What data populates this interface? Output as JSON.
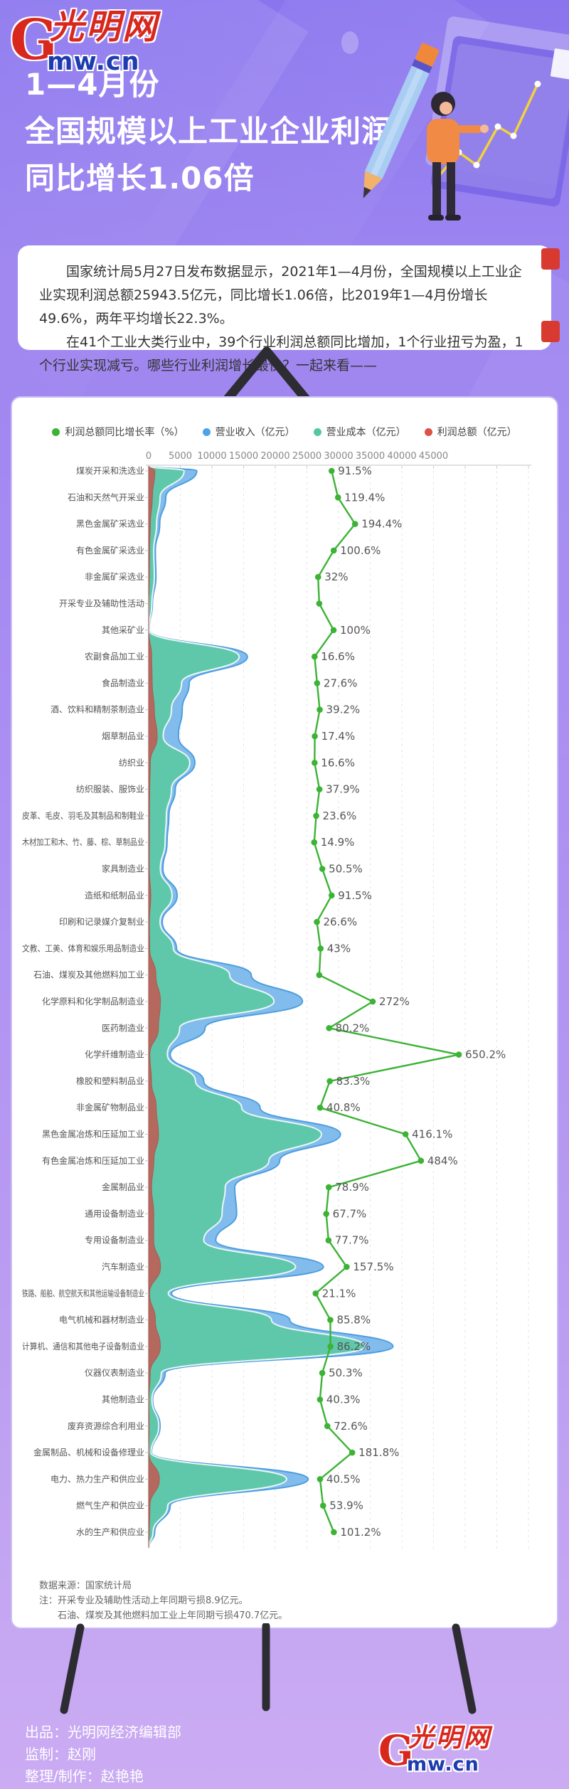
{
  "header": {
    "logo": {
      "initial": "G",
      "cn": "光明网",
      "en": "mw.cn"
    },
    "title_lines": [
      "1—4月份",
      "全国规模以上工业企业利润",
      "同比增长1.06倍"
    ]
  },
  "intro": {
    "p1": "国家统计局5月27日发布数据显示，2021年1—4月份，全国规模以上工业企业实现利润总额25943.5亿元，同比增长1.06倍，比2019年1—4月份增长49.6%，两年平均增长22.3%。",
    "p2": "在41个工业大类行业中，39个行业利润总额同比增加，1个行业扭亏为盈，1个行业实现减亏。哪些行业利润增长最快？一起来看——"
  },
  "chart_data": {
    "type": "area",
    "orientation": "horizontal-ridgeline",
    "legend": [
      {
        "label": "利润总额同比增长率（%）",
        "color": "#3cb335"
      },
      {
        "label": "营业收入（亿元）",
        "color": "#4da3e8"
      },
      {
        "label": "营业成本（亿元）",
        "color": "#52c7a3"
      },
      {
        "label": "利润总额（亿元）",
        "color": "#e05048"
      }
    ],
    "x_axis": {
      "ticks": [
        0,
        5000,
        10000,
        15000,
        20000,
        25000,
        30000,
        35000,
        40000,
        45000
      ],
      "grid": "dashed"
    },
    "categories": [
      "煤炭开采和洗选业",
      "石油和天然气开采业",
      "黑色金属矿采选业",
      "有色金属矿采选业",
      "非金属矿采选业",
      "开采专业及辅助性活动",
      "其他采矿业",
      "农副食品加工业",
      "食品制造业",
      "酒、饮料和精制茶制造业",
      "烟草制品业",
      "纺织业",
      "纺织服装、服饰业",
      "皮革、毛皮、羽毛及其制品和制鞋业",
      "木材加工和木、竹、藤、棕、草制品业",
      "家具制造业",
      "造纸和纸制品业",
      "印刷和记录媒介复制业",
      "文教、工美、体育和娱乐用品制造业",
      "石油、煤炭及其他燃料加工业",
      "化学原料和化学制品制造业",
      "医药制造业",
      "化学纤维制造业",
      "橡胶和塑料制品业",
      "非金属矿物制品业",
      "黑色金属冶炼和压延加工业",
      "有色金属冶炼和压延加工业",
      "金属制品业",
      "通用设备制造业",
      "专用设备制造业",
      "汽车制造业",
      "铁路、船舶、航空航天和其他运输设备制造业",
      "电气机械和器材制造业",
      "计算机、通信和其他电子设备制造业",
      "仪器仪表制造业",
      "其他制造业",
      "废弃资源综合利用业",
      "金属制品、机械和设备修理业",
      "电力、热力生产和供应业",
      "燃气生产和供应业",
      "水的生产和供应业"
    ],
    "series": [
      {
        "name": "营业收入（亿元）",
        "color": "#82bcec",
        "values": [
          7600,
          2700,
          1750,
          1050,
          1150,
          600,
          60,
          15600,
          6400,
          5300,
          4700,
          7300,
          4200,
          3200,
          2900,
          2250,
          4500,
          2150,
          4400,
          16200,
          24300,
          8900,
          3400,
          8700,
          17600,
          30300,
          20700,
          13600,
          13900,
          10600,
          27600,
          3600,
          22300,
          38600,
          2600,
          620,
          1800,
          450,
          25200,
          3400,
          950
        ]
      },
      {
        "name": "营业成本（亿元）",
        "color": "#5fc8aa",
        "values": [
          5600,
          1800,
          1250,
          800,
          900,
          500,
          45,
          14300,
          5200,
          3600,
          2300,
          6500,
          3600,
          2800,
          2600,
          1850,
          3700,
          1800,
          3900,
          12800,
          19800,
          4900,
          2950,
          7400,
          14700,
          27300,
          19000,
          12100,
          11600,
          8700,
          23200,
          3100,
          19400,
          34200,
          2000,
          520,
          1600,
          380,
          21800,
          3000,
          700
        ]
      },
      {
        "name": "利润总额（亿元）",
        "color": "#b5685e",
        "values": [
          1000,
          590,
          270,
          140,
          110,
          25,
          3,
          480,
          560,
          900,
          1350,
          270,
          170,
          130,
          110,
          95,
          340,
          115,
          170,
          1140,
          1870,
          1550,
          190,
          450,
          1200,
          1560,
          830,
          460,
          810,
          800,
          1880,
          150,
          1060,
          1850,
          250,
          40,
          80,
          25,
          1700,
          210,
          95
        ]
      }
    ],
    "growth_rate": {
      "name": "利润总额同比增长率（%）",
      "color": "#3cb335",
      "values": [
        91.5,
        119.4,
        194.4,
        100.6,
        32,
        null,
        100,
        16.6,
        27.6,
        39.2,
        17.4,
        16.6,
        37.9,
        23.6,
        14.9,
        50.5,
        91.5,
        26.6,
        43,
        null,
        272,
        80.2,
        650.2,
        83.3,
        40.8,
        416.1,
        484,
        78.9,
        67.7,
        77.7,
        157.5,
        21.1,
        85.8,
        86.2,
        50.3,
        40.3,
        72.6,
        181.8,
        40.5,
        53.9,
        101.2
      ],
      "labels": [
        "91.5%",
        "119.4%",
        "194.4%",
        "100.6%",
        "32%",
        "",
        "100%",
        "16.6%",
        "27.6%",
        "39.2%",
        "17.4%",
        "16.6%",
        "37.9%",
        "23.6%",
        "14.9%",
        "50.5%",
        "91.5%",
        "26.6%",
        "43%",
        "",
        "272%",
        "80.2%",
        "650.2%",
        "83.3%",
        "40.8%",
        "416.1%",
        "484%",
        "78.9%",
        "67.7%",
        "77.7%",
        "157.5%",
        "21.1%",
        "85.8%",
        "86.2%",
        "50.3%",
        "40.3%",
        "72.6%",
        "181.8%",
        "40.5%",
        "53.9%",
        "101.2%"
      ]
    },
    "notes": {
      "source": "数据来源：国家统计局",
      "note1": "注：开采专业及辅助性活动上年同期亏损8.9亿元。",
      "note2": "石油、煤炭及其他燃料加工业上年同期亏损470.7亿元。"
    }
  },
  "footer": {
    "produced_by": "出品：光明网经济编辑部",
    "supervisor": "监制：赵刚",
    "editor": "整理/制作：赵艳艳"
  }
}
